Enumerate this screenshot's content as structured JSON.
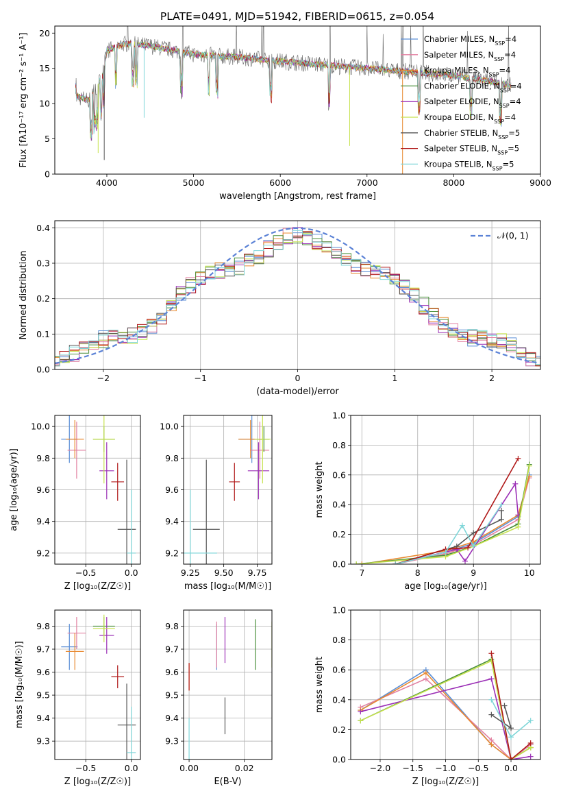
{
  "figure_title": "PLATE=0491, MJD=51942, FIBERID=0615, z=0.054",
  "series_styles": [
    {
      "name": "Chabrier MILES",
      "nssp": "4",
      "color": "#5b8fd6"
    },
    {
      "name": "Salpeter MILES",
      "nssp": "4",
      "color": "#e27fa0"
    },
    {
      "name": "Kroupa MILES",
      "nssp": "4",
      "color": "#e8882e"
    },
    {
      "name": "Chabrier ELODIE",
      "nssp": "4",
      "color": "#4a8f3a"
    },
    {
      "name": "Salpeter ELODIE",
      "nssp": "4",
      "color": "#9b2fb6"
    },
    {
      "name": "Kroupa ELODIE",
      "nssp": "4",
      "color": "#c6e24d"
    },
    {
      "name": "Chabrier STELIB",
      "nssp": "5",
      "color": "#555555"
    },
    {
      "name": "Salpeter STELIB",
      "nssp": "5",
      "color": "#b01818"
    },
    {
      "name": "Kroupa STELIB",
      "nssp": "5",
      "color": "#7fd6d8"
    }
  ],
  "chart_data": [
    {
      "type": "line",
      "panel": "spectrum",
      "title": "PLATE=0491, MJD=51942, FIBERID=0615, z=0.054",
      "xlabel": "wavelength [Angstrom, rest frame]",
      "ylabel": "Flux [fλ10⁻¹⁷ erg cm⁻² s⁻¹ A⁻¹]",
      "xlim": [
        3400,
        9000
      ],
      "ylim": [
        0,
        21
      ],
      "xticks": [
        4000,
        5000,
        6000,
        7000,
        8000,
        9000
      ],
      "yticks": [
        0,
        5,
        10,
        15,
        20
      ],
      "legend_position": "right",
      "continuum": {
        "x": [
          3650,
          3800,
          3950,
          4000,
          4200,
          4500,
          5000,
          5500,
          6000,
          6500,
          7000,
          7500,
          8000,
          8500,
          8650
        ],
        "y": [
          11,
          10.5,
          14,
          17.5,
          18.5,
          18.2,
          17,
          16.6,
          16,
          15.5,
          15,
          14.5,
          14,
          13,
          12.6
        ]
      },
      "series": [
        {
          "name": "Chabrier MILES, N_SSP=4"
        },
        {
          "name": "Salpeter MILES, N_SSP=4"
        },
        {
          "name": "Kroupa MILES, N_SSP=4"
        },
        {
          "name": "Chabrier ELODIE, N_SSP=4"
        },
        {
          "name": "Salpeter ELODIE, N_SSP=4"
        },
        {
          "name": "Kroupa ELODIE, N_SSP=4"
        },
        {
          "name": "Chabrier STELIB, N_SSP=5"
        },
        {
          "name": "Salpeter STELIB, N_SSP=5"
        },
        {
          "name": "Kroupa STELIB, N_SSP=5"
        }
      ]
    },
    {
      "type": "line",
      "panel": "residuals",
      "xlabel": "(data-model)/error",
      "ylabel": "Normed distribution",
      "xlim": [
        -2.5,
        2.5
      ],
      "ylim": [
        0,
        0.42
      ],
      "xticks": [
        -2,
        -1,
        0,
        1,
        2
      ],
      "yticks": [
        0.0,
        0.1,
        0.2,
        0.3,
        0.4
      ],
      "grid": true,
      "legend": "𝒩(0, 1)",
      "legend_position": "top-right",
      "bin_width": 0.1,
      "histogram_note": "nine step histograms, one per model, following a broad plateau ~0.30-0.38"
    },
    {
      "type": "scatter",
      "panel": "age-vs-Z",
      "xlabel": "Z [log₁₀(Z/Z☉)]",
      "ylabel": "age  [log₁₀(age/yr)]",
      "xlim": [
        -0.84,
        0.1
      ],
      "ylim": [
        9.13,
        10.07
      ],
      "xticks": [
        -0.5,
        0.0
      ],
      "yticks": [
        9.2,
        9.4,
        9.6,
        9.8,
        10.0
      ],
      "grid": true,
      "points": [
        {
          "x": -0.68,
          "y": 9.92,
          "xerr": 0.09,
          "yerr": 0.15
        },
        {
          "x": -0.6,
          "y": 9.85,
          "xerr": 0.1,
          "yerr": 0.18
        },
        {
          "x": -0.62,
          "y": 9.92,
          "xerr": 0.1,
          "yerr": 0.12
        },
        {
          "x": -0.3,
          "y": 9.92,
          "xerr": 0.12,
          "yerr": 0.08
        },
        {
          "x": -0.27,
          "y": 9.72,
          "xerr": 0.08,
          "yerr": 0.18
        },
        {
          "x": -0.3,
          "y": 9.92,
          "xerr": 0.12,
          "yerr": 0.28
        },
        {
          "x": -0.05,
          "y": 9.35,
          "xerr": 0.1,
          "yerr": 0.44
        },
        {
          "x": -0.15,
          "y": 9.65,
          "xerr": 0.07,
          "yerr": 0.12
        },
        {
          "x": 0.0,
          "y": 9.2,
          "xerr": 0.05,
          "yerr": 0.4
        }
      ]
    },
    {
      "type": "scatter",
      "panel": "age-vs-mass",
      "xlabel": "mass [log₁₀(M/M☉)]",
      "xlim": [
        9.2,
        9.86
      ],
      "ylim": [
        9.13,
        10.07
      ],
      "xticks": [
        9.25,
        9.5,
        9.75
      ],
      "yticks": [
        9.2,
        9.4,
        9.6,
        9.8,
        10.0
      ],
      "grid": true,
      "points": [
        {
          "x": 9.71,
          "y": 9.92,
          "xerr": 0.1,
          "yerr": 0.15
        },
        {
          "x": 9.77,
          "y": 9.85,
          "xerr": 0.07,
          "yerr": 0.18
        },
        {
          "x": 9.7,
          "y": 9.92,
          "xerr": 0.09,
          "yerr": 0.12
        },
        {
          "x": 9.8,
          "y": 9.92,
          "xerr": 0.04,
          "yerr": 0.08
        },
        {
          "x": 9.76,
          "y": 9.72,
          "xerr": 0.08,
          "yerr": 0.18
        },
        {
          "x": 9.79,
          "y": 9.92,
          "xerr": 0.06,
          "yerr": 0.28
        },
        {
          "x": 9.37,
          "y": 9.35,
          "xerr": 0.1,
          "yerr": 0.44
        },
        {
          "x": 9.58,
          "y": 9.65,
          "xerr": 0.04,
          "yerr": 0.12
        },
        {
          "x": 9.25,
          "y": 9.2,
          "xerr": 0.2,
          "yerr": 0.4
        }
      ]
    },
    {
      "type": "line",
      "panel": "mass-weight-vs-age",
      "xlabel": "age  [log₁₀(age/yr)]",
      "ylabel": "mass weight",
      "xlim": [
        6.8,
        10.2
      ],
      "ylim": [
        0,
        1.0
      ],
      "xticks": [
        7,
        8,
        9,
        10
      ],
      "yticks": [
        0.0,
        0.2,
        0.4,
        0.6,
        0.8,
        1.0
      ],
      "grid": true,
      "series_points": [
        [
          [
            7.6,
            0.0
          ],
          [
            8.5,
            0.08
          ],
          [
            9.0,
            0.14
          ],
          [
            9.8,
            0.32
          ],
          [
            10.0,
            0.6
          ]
        ],
        [
          [
            7.6,
            0.0
          ],
          [
            8.5,
            0.07
          ],
          [
            9.0,
            0.13
          ],
          [
            9.8,
            0.3
          ],
          [
            10.0,
            0.58
          ]
        ],
        [
          [
            7.0,
            0.0
          ],
          [
            8.5,
            0.09
          ],
          [
            9.0,
            0.15
          ],
          [
            9.8,
            0.33
          ],
          [
            10.0,
            0.59
          ]
        ],
        [
          [
            6.9,
            0.0
          ],
          [
            8.5,
            0.06
          ],
          [
            9.0,
            0.12
          ],
          [
            9.8,
            0.27
          ],
          [
            10.0,
            0.67
          ]
        ],
        [
          [
            7.6,
            0.0
          ],
          [
            8.7,
            0.1
          ],
          [
            8.85,
            0.02
          ],
          [
            9.75,
            0.54
          ],
          [
            9.8,
            0.33
          ]
        ],
        [
          [
            6.9,
            0.0
          ],
          [
            8.5,
            0.05
          ],
          [
            9.0,
            0.12
          ],
          [
            9.8,
            0.25
          ],
          [
            10.0,
            0.66
          ]
        ],
        [
          [
            7.6,
            0.0
          ],
          [
            8.7,
            0.12
          ],
          [
            9.0,
            0.21
          ],
          [
            9.5,
            0.3
          ],
          [
            9.5,
            0.36
          ]
        ],
        [
          [
            7.6,
            0.0
          ],
          [
            8.5,
            0.1
          ],
          [
            8.9,
            0.11
          ],
          [
            9.8,
            0.71
          ]
        ],
        [
          [
            7.6,
            0.0
          ],
          [
            8.5,
            0.08
          ],
          [
            8.8,
            0.26
          ],
          [
            9.0,
            0.12
          ],
          [
            9.5,
            0.4
          ]
        ]
      ]
    },
    {
      "type": "scatter",
      "panel": "mass-vs-Z",
      "xlabel": "Z [log₁₀(Z/Z☉)]",
      "ylabel": "mass [log₁₀(M/M☉)]",
      "xlim": [
        -0.84,
        0.1
      ],
      "ylim": [
        9.22,
        9.87
      ],
      "xticks": [
        -0.5,
        0.0
      ],
      "yticks": [
        9.3,
        9.4,
        9.5,
        9.6,
        9.7,
        9.8
      ],
      "grid": true,
      "points": [
        {
          "x": -0.68,
          "y": 9.71,
          "xerr": 0.09,
          "yerr": 0.1
        },
        {
          "x": -0.6,
          "y": 9.77,
          "xerr": 0.1,
          "yerr": 0.07
        },
        {
          "x": -0.62,
          "y": 9.69,
          "xerr": 0.1,
          "yerr": 0.08
        },
        {
          "x": -0.3,
          "y": 9.8,
          "xerr": 0.12,
          "yerr": 0.04
        },
        {
          "x": -0.27,
          "y": 9.76,
          "xerr": 0.08,
          "yerr": 0.08
        },
        {
          "x": -0.3,
          "y": 9.79,
          "xerr": 0.12,
          "yerr": 0.06
        },
        {
          "x": -0.05,
          "y": 9.37,
          "xerr": 0.1,
          "yerr": 0.18
        },
        {
          "x": -0.15,
          "y": 9.58,
          "xerr": 0.07,
          "yerr": 0.05
        },
        {
          "x": 0.0,
          "y": 9.25,
          "xerr": 0.05,
          "yerr": 0.2
        }
      ]
    },
    {
      "type": "scatter",
      "panel": "mass-vs-EBV",
      "xlabel": "E(B-V)",
      "xlim": [
        -0.002,
        0.03
      ],
      "ylim": [
        9.22,
        9.87
      ],
      "xticks": [
        0.0,
        0.02
      ],
      "yticks": [
        9.3,
        9.4,
        9.5,
        9.6,
        9.7,
        9.8
      ],
      "grid": true,
      "points": [
        {
          "x": 0.01,
          "y": 9.71,
          "yerr": 0.1
        },
        {
          "x": 0.01,
          "y": 9.72,
          "yerr": 0.1
        },
        {
          "x": 0.0,
          "y": 9.58,
          "yerr": 0.06
        },
        {
          "x": 0.024,
          "y": 9.72,
          "yerr": 0.11
        },
        {
          "x": 0.013,
          "y": 9.74,
          "yerr": 0.1
        },
        {
          "x": 0.03,
          "y": 9.72,
          "yerr": 0.1
        },
        {
          "x": 0.013,
          "y": 9.41,
          "yerr": 0.08
        },
        {
          "x": 0.0,
          "y": 9.58,
          "yerr": 0.06
        },
        {
          "x": 0.0,
          "y": 9.3,
          "yerr": 0.1
        }
      ]
    },
    {
      "type": "line",
      "panel": "mass-weight-vs-Z",
      "xlabel": "Z [log₁₀(Z/Z☉)]",
      "ylabel": "mass weight",
      "xlim": [
        -2.45,
        0.45
      ],
      "ylim": [
        0,
        1.0
      ],
      "xticks": [
        -2.0,
        -1.5,
        -1.0,
        -0.5,
        0.0
      ],
      "yticks": [
        0.0,
        0.2,
        0.4,
        0.6,
        0.8,
        1.0
      ],
      "grid": true,
      "series_points": [
        [
          [
            -2.3,
            0.33
          ],
          [
            -1.3,
            0.6
          ],
          [
            -0.3,
            0.1
          ],
          [
            0.0,
            0.0
          ],
          [
            0.3,
            0.1
          ]
        ],
        [
          [
            -2.3,
            0.35
          ],
          [
            -1.3,
            0.54
          ],
          [
            -0.3,
            0.13
          ],
          [
            0.0,
            0.0
          ],
          [
            0.3,
            0.1
          ]
        ],
        [
          [
            -2.3,
            0.33
          ],
          [
            -1.3,
            0.58
          ],
          [
            -0.3,
            0.1
          ],
          [
            0.0,
            0.0
          ],
          [
            0.3,
            0.08
          ]
        ],
        [
          [
            -2.3,
            0.26
          ],
          [
            -0.3,
            0.67
          ],
          [
            0.0,
            0.0
          ],
          [
            0.3,
            0.08
          ]
        ],
        [
          [
            -2.3,
            0.32
          ],
          [
            -0.3,
            0.54
          ],
          [
            0.0,
            0.0
          ],
          [
            0.3,
            0.02
          ]
        ],
        [
          [
            -2.3,
            0.26
          ],
          [
            -0.3,
            0.66
          ],
          [
            0.0,
            0.0
          ],
          [
            0.3,
            0.08
          ]
        ],
        [
          [
            -0.3,
            0.3
          ],
          [
            0.0,
            0.21
          ],
          [
            -0.1,
            0.36
          ]
        ],
        [
          [
            -0.3,
            0.71
          ],
          [
            0.0,
            0.0
          ],
          [
            0.3,
            0.11
          ]
        ],
        [
          [
            -0.3,
            0.4
          ],
          [
            0.0,
            0.15
          ],
          [
            0.3,
            0.26
          ]
        ]
      ]
    }
  ]
}
